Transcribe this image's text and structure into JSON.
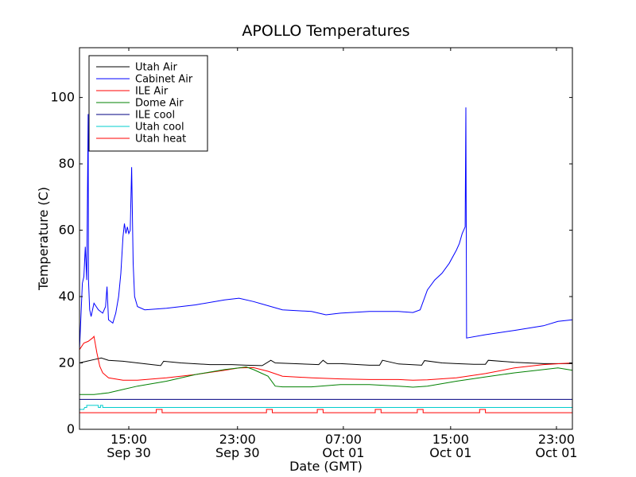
{
  "chart_data": {
    "type": "line",
    "title": "APOLLO Temperatures",
    "xlabel": "Date (GMT)",
    "ylabel": "Temperature (C)",
    "ylim": [
      0,
      115
    ],
    "xlim_hours": [
      0,
      34
    ],
    "grid": false,
    "legend_position": "top-left",
    "y_ticks": [
      0,
      20,
      40,
      60,
      80,
      100
    ],
    "x_ticks": [
      {
        "hour": 3.4,
        "time": "15:00",
        "date": "Sep 30"
      },
      {
        "hour": 10.9,
        "time": "23:00",
        "date": "Sep 30"
      },
      {
        "hour": 18.2,
        "time": "07:00",
        "date": "Oct 01"
      },
      {
        "hour": 25.6,
        "time": "15:00",
        "date": "Oct 01"
      },
      {
        "hour": 32.9,
        "time": "23:00",
        "date": "Oct 01"
      }
    ],
    "series": [
      {
        "name": "Utah Air",
        "color": "#000000",
        "x": [
          0,
          0.5,
          1,
          1.5,
          2,
          3,
          4,
          5,
          5.6,
          5.8,
          7,
          9,
          10.5,
          11.5,
          12.6,
          13.2,
          13.5,
          16.5,
          16.8,
          17.1,
          18,
          20,
          20.7,
          20.9,
          22,
          23.6,
          23.8,
          25,
          26,
          27.2,
          28,
          28.2,
          30,
          32,
          34
        ],
        "y": [
          20,
          20.5,
          21,
          21.5,
          20.8,
          20.5,
          20,
          19.5,
          19.2,
          20.5,
          20,
          19.5,
          19.5,
          19.3,
          19.2,
          20.8,
          20,
          19.5,
          20.8,
          19.8,
          19.8,
          19.3,
          19.3,
          20.8,
          19.7,
          19.3,
          20.7,
          20,
          19.8,
          19.6,
          19.6,
          20.8,
          20.2,
          19.8,
          19.8
        ]
      },
      {
        "name": "Cabinet Air",
        "color": "#0000ff",
        "x": [
          0,
          0.2,
          0.3,
          0.4,
          0.5,
          0.6,
          0.62,
          0.7,
          0.8,
          1.0,
          1.3,
          1.6,
          1.8,
          1.9,
          2.0,
          2.3,
          2.5,
          2.7,
          2.85,
          3.0,
          3.1,
          3.2,
          3.3,
          3.4,
          3.5,
          3.6,
          3.7,
          3.8,
          4.0,
          4.5,
          6,
          8,
          10,
          11,
          12,
          14,
          16,
          17,
          18,
          20,
          22,
          23,
          23.5,
          24,
          24.5,
          25,
          25.5,
          26,
          26.2,
          26.4,
          26.6,
          26.65,
          26.7,
          28,
          30,
          32,
          33,
          34
        ],
        "y": [
          24,
          44,
          46,
          55,
          45,
          95,
          45,
          36,
          34,
          38,
          36,
          35,
          37,
          43,
          33,
          32,
          35,
          40,
          47,
          58,
          62,
          59,
          61,
          59,
          60,
          79,
          50,
          40,
          37,
          36,
          36.5,
          37.5,
          39,
          39.5,
          38.5,
          36,
          35.5,
          34.5,
          35,
          35.5,
          35.5,
          35.2,
          36,
          42,
          45,
          47,
          50,
          54,
          56,
          59,
          61,
          97,
          27.5,
          28.5,
          29.8,
          31.2,
          32.5,
          33
        ]
      },
      {
        "name": "ILE Air",
        "color": "#ff0000",
        "x": [
          0,
          0.3,
          0.6,
          0.9,
          1.0,
          1.2,
          1.4,
          1.6,
          2,
          3,
          4,
          6,
          8,
          10,
          11,
          12,
          13,
          14,
          16,
          18,
          20,
          22,
          23,
          24,
          26,
          28,
          30,
          32,
          34
        ],
        "y": [
          24,
          26,
          26.5,
          27.5,
          28,
          23,
          19,
          17,
          15.5,
          14.8,
          14.8,
          15.5,
          16.5,
          17.8,
          18.5,
          18.6,
          17.5,
          16,
          15.5,
          15.2,
          15,
          15,
          14.8,
          14.9,
          15.5,
          16.8,
          18.5,
          19.5,
          20
        ]
      },
      {
        "name": "Dome Air",
        "color": "#008000",
        "x": [
          0,
          1,
          2,
          3,
          4,
          6,
          8,
          10,
          11,
          11.5,
          12,
          12.5,
          13,
          13.5,
          14,
          16,
          18,
          20,
          22,
          23,
          24,
          26,
          28,
          30,
          32,
          33,
          34
        ],
        "y": [
          10.5,
          10.5,
          11,
          12,
          13,
          14.5,
          16.5,
          18,
          18.5,
          18.8,
          18,
          17,
          16,
          13,
          12.8,
          12.8,
          13.5,
          13.5,
          13,
          12.7,
          13,
          14.5,
          15.8,
          17,
          18,
          18.5,
          17.8
        ]
      },
      {
        "name": "ILE cool",
        "color": "#000080",
        "x": [
          0,
          34
        ],
        "y": [
          9,
          9
        ]
      },
      {
        "name": "Utah cool",
        "color": "#00cccc",
        "x": [
          0,
          0.3,
          0.35,
          0.5,
          0.5,
          1.0,
          1.0,
          1.3,
          1.3,
          1.45,
          1.45,
          1.6,
          1.6,
          34
        ],
        "y": [
          6,
          6,
          6.6,
          6.6,
          7.2,
          7.2,
          7.2,
          7.2,
          6.6,
          6.6,
          7.2,
          7.2,
          6.6,
          6.6
        ]
      },
      {
        "name": "Utah heat",
        "color": "#ff0000",
        "x": [
          0,
          5.3,
          5.3,
          5.7,
          5.7,
          12.9,
          12.9,
          13.3,
          13.3,
          16.4,
          16.4,
          16.8,
          16.8,
          20.4,
          20.4,
          20.8,
          20.8,
          23.3,
          23.3,
          23.7,
          23.7,
          27.6,
          27.6,
          28.0,
          28.0,
          34
        ],
        "y": [
          5,
          5,
          6,
          6,
          5,
          5,
          6,
          6,
          5,
          5,
          6,
          6,
          5,
          5,
          6,
          6,
          5,
          5,
          6,
          6,
          5,
          5,
          6,
          6,
          5,
          5
        ]
      }
    ]
  }
}
